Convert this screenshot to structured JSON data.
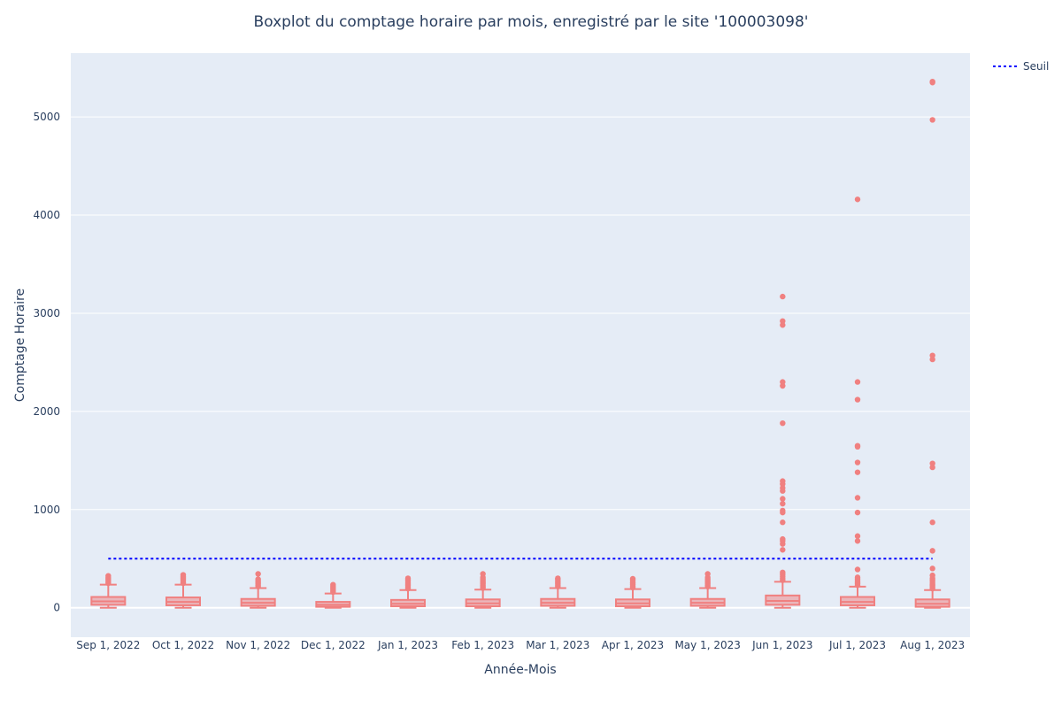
{
  "chart_data": {
    "type": "box",
    "title": "Boxplot du comptage horaire par mois, enregistré par le site '100003098'",
    "xlabel": "Année-Mois",
    "ylabel": "Comptage Horaire",
    "ylim": [
      -300,
      5650
    ],
    "yticks": [
      0,
      1000,
      2000,
      3000,
      4000,
      5000
    ],
    "grid": true,
    "legend_position": "top-right",
    "colors": {
      "box": "#f08080",
      "threshold": "#0000ff",
      "plot_bg": "#e5ecf6",
      "grid": "#ffffff"
    },
    "threshold": {
      "name": "Seuil",
      "value": 500,
      "style": "dotted"
    },
    "categories": [
      "Sep 1, 2022",
      "Oct 1, 2022",
      "Nov 1, 2022",
      "Dec 1, 2022",
      "Jan 1, 2023",
      "Feb 1, 2023",
      "Mar 1, 2023",
      "Apr 1, 2023",
      "May 1, 2023",
      "Jun 1, 2023",
      "Jul 1, 2023",
      "Aug 1, 2023"
    ],
    "boxes": [
      {
        "min": 0,
        "q1": 30,
        "median": 65,
        "q3": 110,
        "upper_whisker": 235,
        "outliers": [
          250,
          265,
          280,
          295,
          310,
          325
        ]
      },
      {
        "min": 0,
        "q1": 25,
        "median": 60,
        "q3": 105,
        "upper_whisker": 235,
        "outliers": [
          250,
          265,
          280,
          295,
          310,
          320,
          335
        ]
      },
      {
        "min": 0,
        "q1": 20,
        "median": 50,
        "q3": 90,
        "upper_whisker": 200,
        "outliers": [
          215,
          230,
          245,
          260,
          275,
          290,
          345
        ]
      },
      {
        "min": 0,
        "q1": 10,
        "median": 30,
        "q3": 60,
        "upper_whisker": 145,
        "outliers": [
          160,
          175,
          190,
          205,
          220,
          235
        ]
      },
      {
        "min": 0,
        "q1": 15,
        "median": 40,
        "q3": 80,
        "upper_whisker": 180,
        "outliers": [
          195,
          210,
          225,
          240,
          255,
          270,
          285,
          300
        ]
      },
      {
        "min": 0,
        "q1": 15,
        "median": 45,
        "q3": 85,
        "upper_whisker": 185,
        "outliers": [
          200,
          215,
          230,
          245,
          260,
          275,
          290,
          310,
          345
        ]
      },
      {
        "min": 0,
        "q1": 20,
        "median": 50,
        "q3": 90,
        "upper_whisker": 200,
        "outliers": [
          215,
          230,
          245,
          260,
          275,
          290,
          300
        ]
      },
      {
        "min": 0,
        "q1": 15,
        "median": 45,
        "q3": 85,
        "upper_whisker": 190,
        "outliers": [
          205,
          220,
          235,
          250,
          265,
          280,
          295
        ]
      },
      {
        "min": 0,
        "q1": 20,
        "median": 50,
        "q3": 90,
        "upper_whisker": 200,
        "outliers": [
          215,
          230,
          245,
          260,
          275,
          290,
          310,
          345
        ]
      },
      {
        "min": 0,
        "q1": 30,
        "median": 70,
        "q3": 125,
        "upper_whisker": 265,
        "outliers": [
          280,
          300,
          320,
          340,
          360,
          590,
          650,
          680,
          700,
          870,
          970,
          990,
          1060,
          1110,
          1190,
          1220,
          1260,
          1290,
          1880,
          2260,
          2300,
          2880,
          2920,
          3170
        ]
      },
      {
        "min": 0,
        "q1": 25,
        "median": 60,
        "q3": 110,
        "upper_whisker": 215,
        "outliers": [
          230,
          245,
          260,
          275,
          290,
          310,
          390,
          680,
          730,
          970,
          1120,
          1380,
          1480,
          1640,
          1650,
          2120,
          2300,
          4160
        ]
      },
      {
        "min": 0,
        "q1": 10,
        "median": 40,
        "q3": 85,
        "upper_whisker": 180,
        "outliers": [
          195,
          210,
          225,
          240,
          260,
          280,
          300,
          330,
          400,
          580,
          870,
          1430,
          1470,
          2530,
          2570,
          4970,
          5350,
          5360
        ]
      }
    ]
  }
}
